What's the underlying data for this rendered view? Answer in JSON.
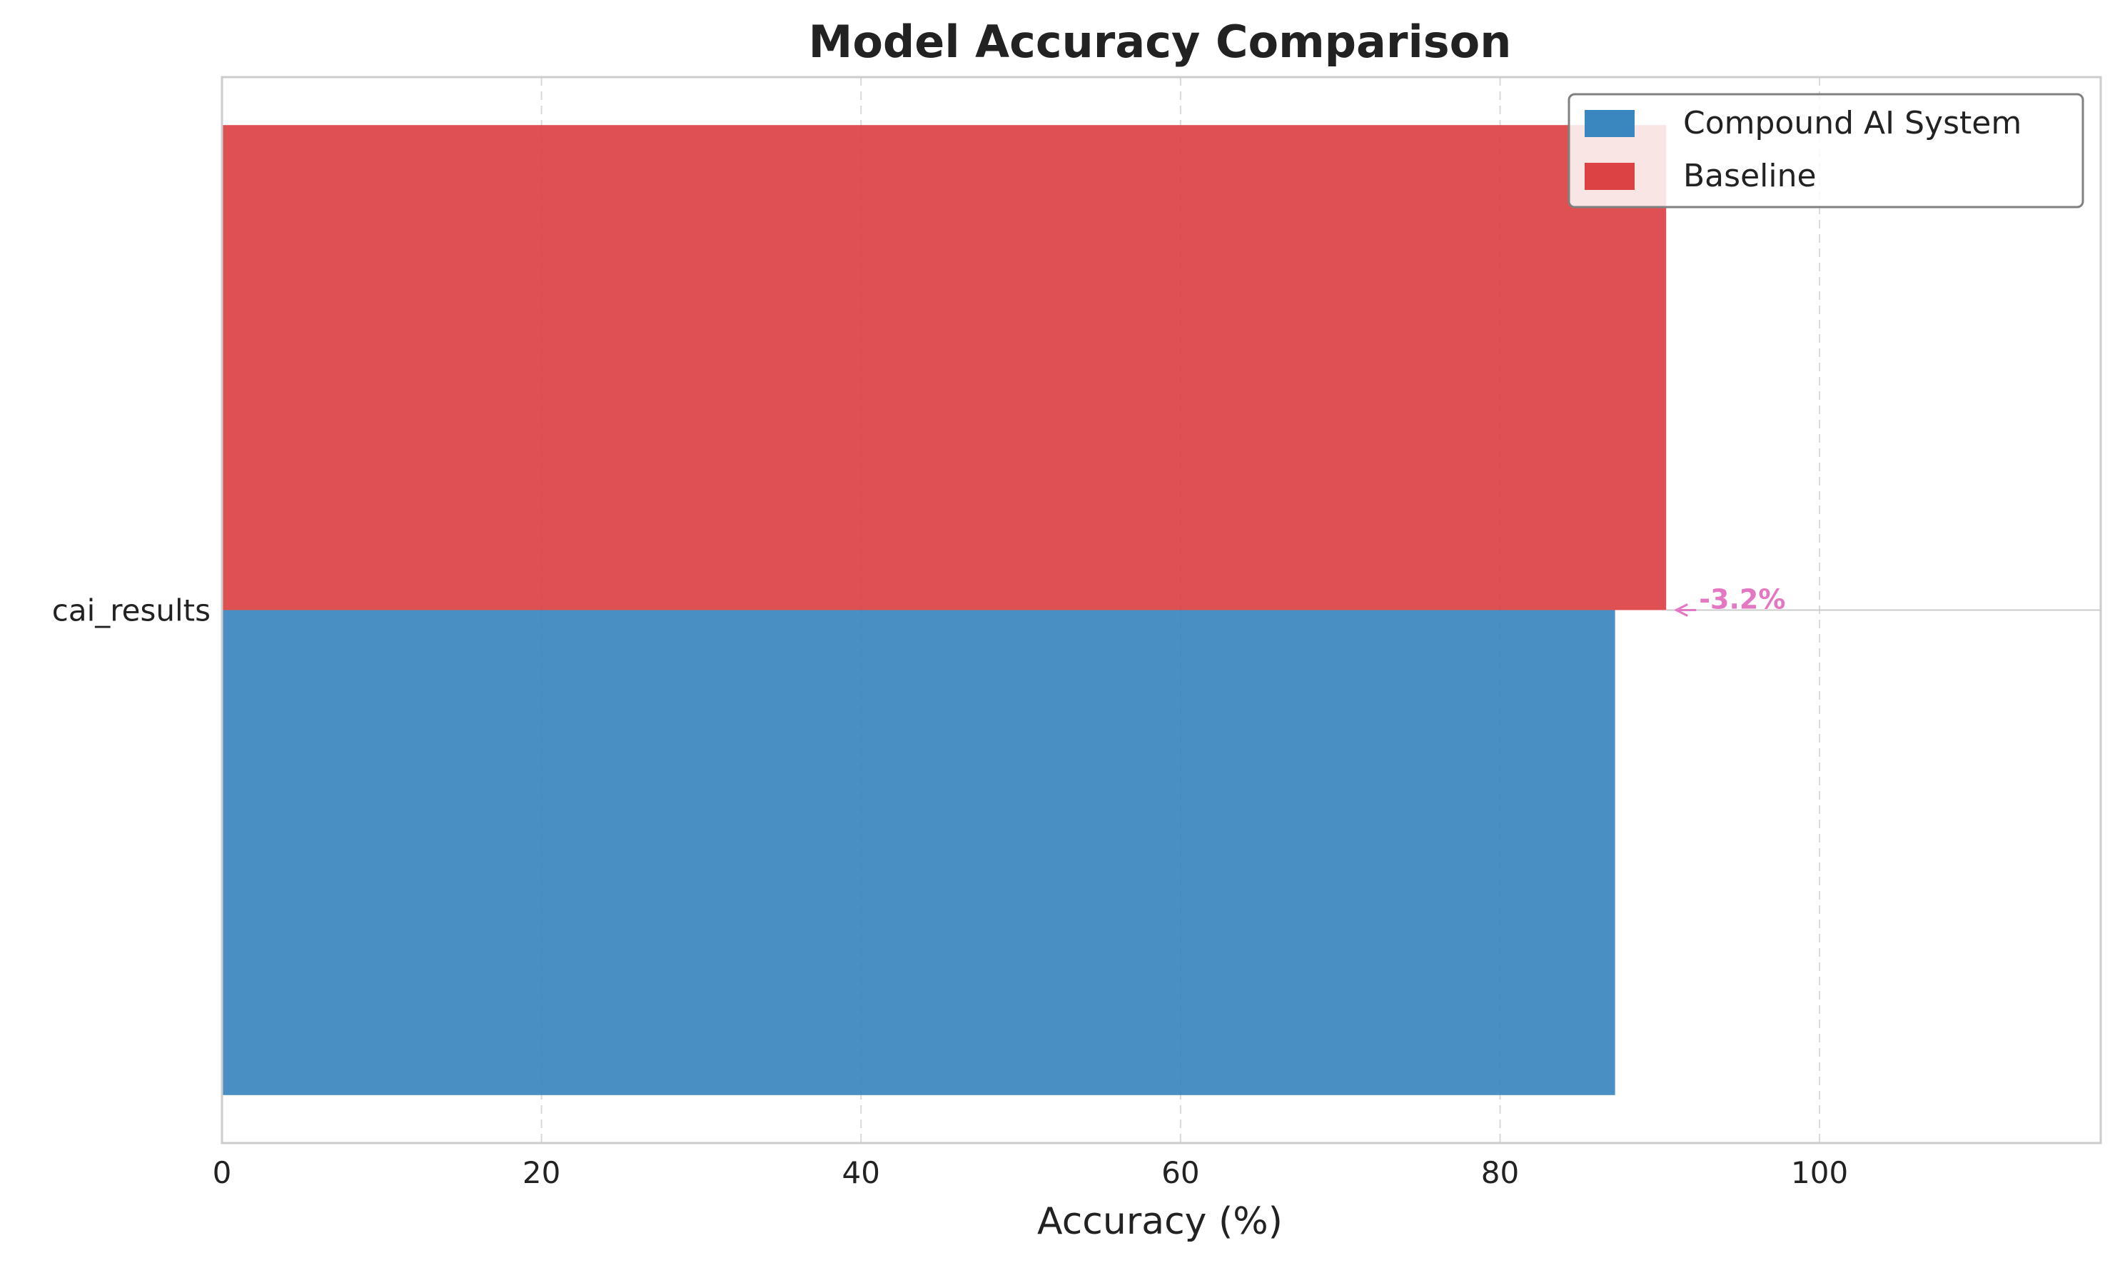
{
  "chart_data": {
    "type": "bar",
    "orientation": "horizontal",
    "title": "Model Accuracy Comparison",
    "xlabel": "Accuracy (%)",
    "ylabel": "",
    "categories": [
      "cai_results"
    ],
    "series": [
      {
        "name": "Compound AI System",
        "values": [
          87.2
        ],
        "color": "#3a86bf"
      },
      {
        "name": "Baseline",
        "values": [
          90.4
        ],
        "color": "#dc4144"
      }
    ],
    "xlim": [
      0,
      117.6
    ],
    "xticks": [
      0,
      20,
      40,
      60,
      80,
      100
    ],
    "xtick_labels": [
      "0",
      "20",
      "40",
      "60",
      "80",
      "100"
    ],
    "grid": "x-dashed",
    "legend": "top-right",
    "annotations": [
      {
        "text": "-3.2%",
        "category": "cai_results",
        "color": "#e377c2",
        "arrow": true
      }
    ]
  }
}
